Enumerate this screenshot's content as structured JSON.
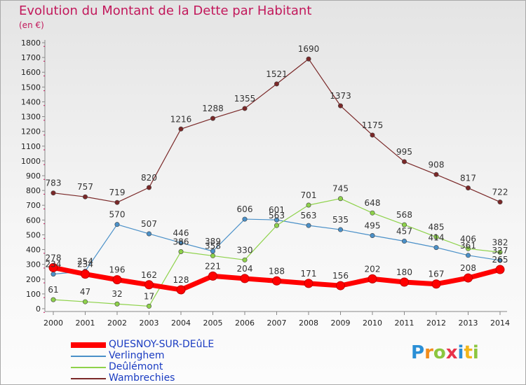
{
  "header": {
    "title": "Evolution du Montant de la Dette par Habitant",
    "subtitle": "(en €)"
  },
  "logo": {
    "text": "Proxiti"
  },
  "chart_data": {
    "type": "line",
    "title": "Evolution du Montant de la Dette par Habitant",
    "subtitle": "(en €)",
    "xlabel": "",
    "ylabel": "",
    "ylim": [
      0,
      1800
    ],
    "y_ticks": [
      0,
      100,
      200,
      300,
      400,
      500,
      600,
      700,
      800,
      900,
      1000,
      1100,
      1200,
      1300,
      1400,
      1500,
      1600,
      1700,
      1800
    ],
    "categories": [
      "2000",
      "2001",
      "2002",
      "2003",
      "2004",
      "2005",
      "2006",
      "2007",
      "2008",
      "2009",
      "2010",
      "2011",
      "2012",
      "2013",
      "2014"
    ],
    "grid": false,
    "legend_position": "bottom",
    "series": [
      {
        "name": "QUESNOY-SUR-DEûLE",
        "color": "#ff0000",
        "emphasis": true,
        "values": [
          278,
          234,
          196,
          162,
          128,
          221,
          204,
          188,
          171,
          156,
          202,
          180,
          167,
          208,
          265
        ]
      },
      {
        "name": "Verlinghem",
        "color": "#4a90c8",
        "emphasis": false,
        "values": [
          234,
          254,
          570,
          507,
          446,
          389,
          606,
          601,
          563,
          535,
          495,
          457,
          414,
          361,
          327
        ]
      },
      {
        "name": "Deûlémont",
        "color": "#8ed24a",
        "emphasis": false,
        "values": [
          61,
          47,
          32,
          17,
          386,
          358,
          330,
          563,
          701,
          745,
          648,
          568,
          485,
          406,
          382
        ]
      },
      {
        "name": "Wambrechies",
        "color": "#7a2828",
        "emphasis": false,
        "values": [
          783,
          757,
          719,
          820,
          1216,
          1288,
          1355,
          1521,
          1690,
          1373,
          1175,
          995,
          908,
          817,
          722
        ]
      }
    ]
  }
}
